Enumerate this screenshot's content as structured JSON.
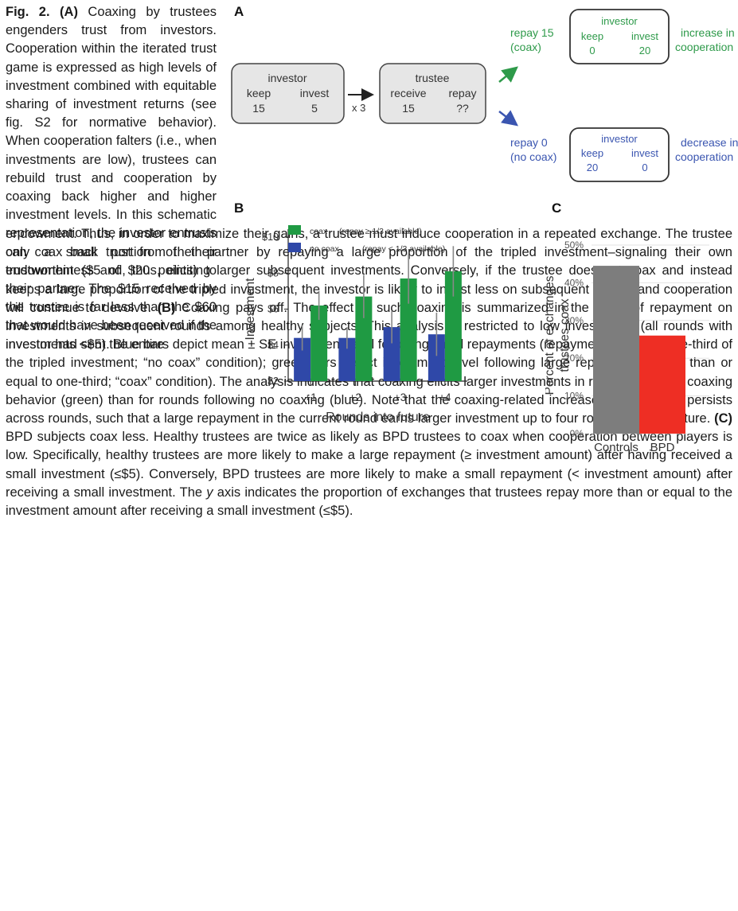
{
  "caption": {
    "fig_label": "Fig. 2.",
    "a_label": "(A)",
    "a_lead": " Coaxing by trustees engenders trust from investors. Cooperation within the iterated trust game is expressed as high levels of investment combined with equitable sharing of investment returns (see fig. S2 for normative behavior). When cooperation falters (i.e., when investments are low), trustees can rebuild trust and cooperation by coaxing back higher and higher investment levels. In this schematic representation, the investor entrusts only a small portion of their endowment ($5 of $20 points) to their partner. The $15 received by the trustee is far less than the $60 that would have been received if the investor had sent the entire",
    "a_tail": "endowment. Thus, in order to maximize their gains, a trustee must induce cooperation in a repeated exchange. The trustee can coax back trust from their partner by repaying a large proportion of the tripled investment–signaling their own trustworthiness and, thus, eliciting larger subsequent investments. Conversely, if the trustee does not coax and instead keeps a large proportion of the tripled investment, the investor is likely to invest less on subsequent rounds and cooperation will continue to devolve.",
    "b_label": "(B)",
    "b_text": " Coaxing pays off. The effect of such coaxing is summarized in the effect of repayment on investments in subsequent rounds among healthy subjects. This analysis is restricted to low investments (all rounds with investments <$5). Blue bars depict mean ± SE investment level following small repayments (repayment less than one-third of the tripled investment; “no coax” condition); green bars depict investment level following large repayments (more than or equal to one-third; “coax” condition). The analysis indicates that coaxing elicits larger investments in rounds following coaxing behavior (green) than for rounds following no coaxing (blue). Note that the coaxing-related increase in investment persists across rounds, such that a large repayment in the current round earns larger investment up to four rounds into the future.",
    "c_label": "(C)",
    "c_text_1": " BPD subjects coax less. Healthy trustees are twice as likely as BPD trustees to coax when cooperation between players is low. Specifically, healthy trustees are more likely to make a large repayment (≥ investment amount) after having received a small investment (≤$5). Conversely, BPD trustees are more likely to make a small repayment (< investment amount) after receiving a small investment. The ",
    "c_y": "y",
    "c_text_2": " axis indicates the proportion of exchanges that trustees repay more than or equal to the investment amount after receiving a small investment (≤$5)."
  },
  "panel_a": {
    "label": "A",
    "investor_box": {
      "title": "investor",
      "keep_label": "keep",
      "invest_label": "invest",
      "keep_value": "15",
      "invest_value": "5"
    },
    "multiplier": "x 3",
    "trustee_box": {
      "title": "trustee",
      "receive_label": "receive",
      "repay_label": "repay",
      "receive_value": "15",
      "repay_value": "??"
    },
    "coax_branch": {
      "line1": "repay 15",
      "line2": "(coax)",
      "box_title": "investor",
      "keep_label": "keep",
      "invest_label": "invest",
      "keep_value": "0",
      "invest_value": "20",
      "outcome1": "increase in",
      "outcome2": "cooperation",
      "color": "#2e9a4a"
    },
    "nocoax_branch": {
      "line1": "repay 0",
      "line2": "(no coax)",
      "box_title": "investor",
      "keep_label": "keep",
      "invest_label": "invest",
      "keep_value": "20",
      "invest_value": "0",
      "outcome1": "decrease in",
      "outcome2": "cooperation",
      "color": "#3a55b0"
    }
  },
  "chart_data": [
    {
      "panel": "B",
      "type": "bar",
      "xlabel": "Rounds into future",
      "ylabel": "Investment",
      "categories": [
        "+1",
        "+2",
        "+3",
        "+4"
      ],
      "ylim": [
        2,
        10
      ],
      "yticks": [
        "$2",
        "$4",
        "$6",
        "$8",
        "$10"
      ],
      "ytick_values": [
        2,
        4,
        6,
        8,
        10
      ],
      "series": [
        {
          "name": "no coax",
          "legend_note": "(repay < 1/3 available)",
          "color": "#2f48a8",
          "values": [
            4.4,
            4.4,
            5.0,
            4.6
          ],
          "errors": [
            0.7,
            0.6,
            0.9,
            1.2
          ]
        },
        {
          "name": "coax",
          "legend_note": "(repay ≥ 1/3 available)",
          "color": "#1f9a43",
          "values": [
            6.2,
            6.7,
            7.7,
            8.1
          ],
          "errors": [
            0.8,
            1.2,
            1.4,
            1.4
          ]
        }
      ],
      "legend_position": "top-left"
    },
    {
      "panel": "C",
      "type": "bar",
      "ylabel": "Percent of exchanges trustees coax",
      "ylabel_lines": [
        "Percent of exchanges",
        "trustees coax"
      ],
      "categories": [
        "Controls",
        "BPD"
      ],
      "values": [
        44.5,
        26
      ],
      "colors": [
        "#7d7d7d",
        "#ee2e24"
      ],
      "ylim": [
        0,
        50
      ],
      "yticks": [
        "0%",
        "10%",
        "20%",
        "30%",
        "40%",
        "50%"
      ],
      "ytick_values": [
        0,
        10,
        20,
        30,
        40,
        50
      ],
      "grid": true
    }
  ],
  "panel_labels": {
    "b": "B",
    "c": "C"
  }
}
